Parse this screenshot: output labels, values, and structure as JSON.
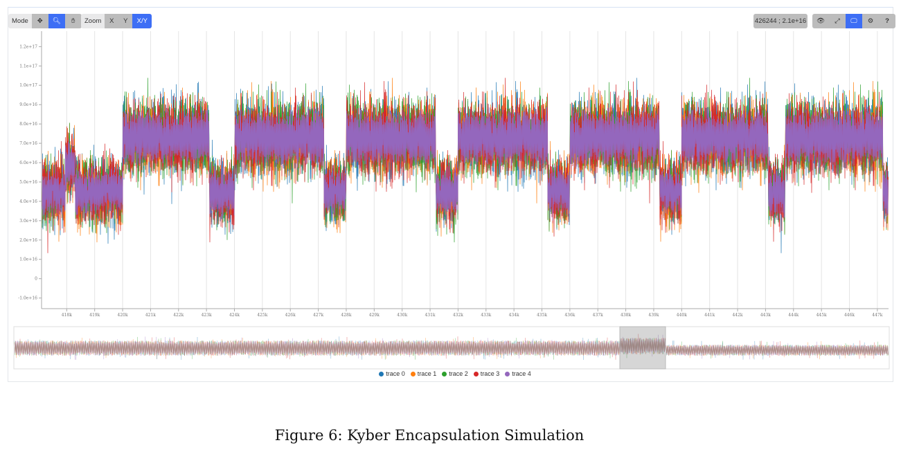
{
  "toolbar": {
    "mode_label": "Mode",
    "mode_buttons": [
      {
        "icon": "move-icon",
        "glyph": "✥",
        "active": false
      },
      {
        "icon": "search-icon",
        "glyph": "🔍︎",
        "active": true
      },
      {
        "icon": "hand-icon",
        "glyph": "✋︎",
        "active": false
      }
    ],
    "zoom_label": "Zoom",
    "zoom_buttons": [
      {
        "label": "X",
        "active": false
      },
      {
        "label": "Y",
        "active": false
      },
      {
        "label": "X/Y",
        "active": true
      }
    ],
    "coordinate_readout": "426244 ; 2.1e+16",
    "right_buttons": [
      {
        "icon": "eye-icon",
        "glyph": "👁︎",
        "active": false
      },
      {
        "icon": "expand-icon",
        "glyph": "⤢",
        "active": false
      },
      {
        "icon": "monitor-icon",
        "glyph": "🖵",
        "active": true
      },
      {
        "icon": "gear-icon",
        "glyph": "⚙",
        "active": false
      },
      {
        "icon": "help-icon",
        "glyph": "?",
        "active": false
      }
    ]
  },
  "chart_data": {
    "type": "line",
    "title": "",
    "xlabel": "",
    "ylabel": "",
    "xlim": [
      417100,
      447400
    ],
    "ylim": [
      -1.55e+16,
      1.28e+17
    ],
    "x_ticks": [
      "418k",
      "419k",
      "420k",
      "421k",
      "422k",
      "423k",
      "424k",
      "425k",
      "426k",
      "427k",
      "428k",
      "429k",
      "430k",
      "431k",
      "432k",
      "433k",
      "434k",
      "435k",
      "436k",
      "437k",
      "438k",
      "439k",
      "440k",
      "441k",
      "442k",
      "443k",
      "444k",
      "445k",
      "446k",
      "447k"
    ],
    "y_ticks": [
      "1.2e+17",
      "1.1e+17",
      "1.0e+17",
      "9.0e+16",
      "8.0e+16",
      "7.0e+16",
      "6.0e+16",
      "5.0e+16",
      "4.0e+16",
      "3.0e+16",
      "2.0e+16",
      "1.0e+16",
      "0",
      "-1.0e+16"
    ],
    "grid": "vertical",
    "legend_position": "bottom",
    "series": [
      {
        "name": "trace 0",
        "color": "#1f77b4"
      },
      {
        "name": "trace 1",
        "color": "#ff7f0e"
      },
      {
        "name": "trace 2",
        "color": "#2ca02c"
      },
      {
        "name": "trace 3",
        "color": "#d62728"
      },
      {
        "name": "trace 4",
        "color": "#9467bd"
      }
    ],
    "segments": [
      {
        "x": [
          417100,
          420000
        ],
        "level": "low",
        "center": 4.5e+16
      },
      {
        "x": [
          420000,
          423100
        ],
        "level": "high",
        "center": 7.3e+16
      },
      {
        "x": [
          423100,
          424000
        ],
        "level": "low",
        "center": 4.5e+16
      },
      {
        "x": [
          424000,
          427200
        ],
        "level": "high",
        "center": 7.3e+16
      },
      {
        "x": [
          427200,
          428000
        ],
        "level": "low",
        "center": 4.5e+16
      },
      {
        "x": [
          428000,
          431200
        ],
        "level": "high",
        "center": 7.3e+16
      },
      {
        "x": [
          431200,
          432000
        ],
        "level": "low",
        "center": 4.5e+16
      },
      {
        "x": [
          432000,
          435200
        ],
        "level": "high",
        "center": 7.3e+16
      },
      {
        "x": [
          435200,
          436000
        ],
        "level": "low",
        "center": 4.5e+16
      },
      {
        "x": [
          436000,
          439200
        ],
        "level": "high",
        "center": 7.3e+16
      },
      {
        "x": [
          439200,
          440000
        ],
        "level": "low",
        "center": 4.5e+16
      },
      {
        "x": [
          440000,
          443100
        ],
        "level": "high",
        "center": 7.3e+16
      },
      {
        "x": [
          443100,
          443700
        ],
        "level": "low",
        "center": 4.5e+16
      },
      {
        "x": [
          443700,
          447200
        ],
        "level": "high",
        "center": 7.3e+16
      },
      {
        "x": [
          447200,
          447400
        ],
        "level": "low",
        "center": 4.5e+16
      }
    ]
  },
  "caption": "Figure 6: Kyber Encapsulation Simulation"
}
